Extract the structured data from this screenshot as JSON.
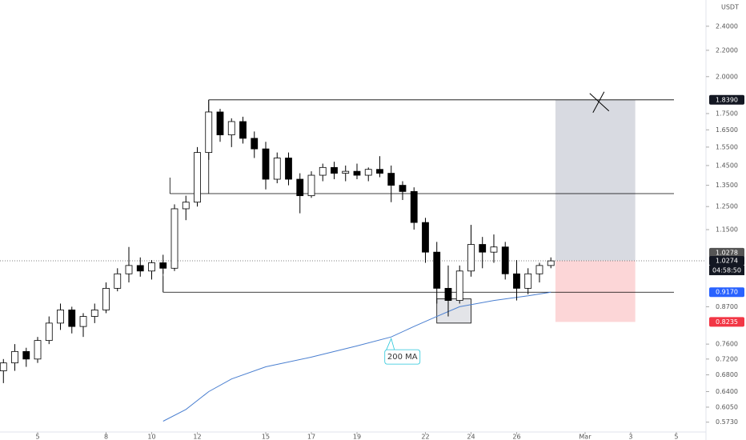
{
  "chart_data": {
    "type": "candlestick",
    "currency": "USDT",
    "log_scale": true,
    "up_color": "#ffffff",
    "down_color": "#000000",
    "x": [
      3.5,
      4,
      4.5,
      5,
      5.5,
      6,
      6.5,
      7,
      7.5,
      8,
      8.5,
      9,
      9.5,
      10,
      10.5,
      11,
      11.5,
      12,
      12.5,
      13,
      13.5,
      14,
      14.5,
      15,
      15.5,
      16,
      16.5,
      17,
      17.5,
      18,
      18.5,
      19,
      19.5,
      20,
      20.5,
      21,
      21.5,
      22,
      22.5,
      23,
      23.5,
      24,
      24.5,
      25,
      25.5,
      26,
      26.5,
      27,
      27.5
    ],
    "open": [
      0.69,
      0.71,
      0.74,
      0.72,
      0.77,
      0.82,
      0.86,
      0.81,
      0.84,
      0.86,
      0.93,
      0.98,
      1.01,
      0.99,
      1.02,
      1.0,
      1.24,
      1.27,
      1.52,
      1.76,
      1.62,
      1.7,
      1.6,
      1.54,
      1.38,
      1.49,
      1.38,
      1.3,
      1.4,
      1.44,
      1.41,
      1.42,
      1.4,
      1.43,
      1.41,
      1.35,
      1.32,
      1.18,
      1.06,
      0.93,
      0.89,
      0.99,
      1.09,
      1.06,
      1.08,
      0.98,
      0.93,
      0.98,
      1.01
    ],
    "high": [
      0.72,
      0.76,
      0.75,
      0.78,
      0.84,
      0.88,
      0.87,
      0.85,
      0.88,
      0.95,
      1.0,
      1.08,
      1.04,
      1.03,
      1.05,
      1.26,
      1.3,
      1.55,
      1.839,
      1.78,
      1.72,
      1.73,
      1.64,
      1.58,
      1.52,
      1.52,
      1.41,
      1.42,
      1.46,
      1.47,
      1.45,
      1.46,
      1.44,
      1.5,
      1.45,
      1.37,
      1.34,
      1.2,
      1.1,
      1.01,
      1.01,
      1.17,
      1.12,
      1.13,
      1.1,
      1.03,
      1.0,
      1.02,
      1.04
    ],
    "low": [
      0.66,
      0.69,
      0.7,
      0.71,
      0.76,
      0.8,
      0.79,
      0.78,
      0.82,
      0.85,
      0.92,
      0.95,
      0.97,
      0.96,
      0.98,
      0.99,
      1.19,
      1.25,
      1.48,
      1.58,
      1.55,
      1.57,
      1.49,
      1.33,
      1.36,
      1.35,
      1.22,
      1.29,
      1.37,
      1.38,
      1.37,
      1.38,
      1.37,
      1.39,
      1.27,
      1.28,
      1.15,
      1.02,
      0.88,
      0.84,
      0.88,
      0.97,
      1.0,
      1.02,
      0.96,
      0.89,
      0.91,
      0.95,
      1.0
    ],
    "close": [
      0.71,
      0.74,
      0.72,
      0.77,
      0.82,
      0.86,
      0.81,
      0.84,
      0.86,
      0.93,
      0.98,
      1.01,
      0.99,
      1.02,
      1.0,
      1.24,
      1.27,
      1.52,
      1.76,
      1.62,
      1.7,
      1.6,
      1.54,
      1.38,
      1.49,
      1.38,
      1.3,
      1.4,
      1.44,
      1.41,
      1.42,
      1.4,
      1.43,
      1.41,
      1.35,
      1.32,
      1.18,
      1.06,
      0.93,
      0.89,
      0.99,
      1.09,
      1.06,
      1.08,
      0.98,
      0.93,
      0.98,
      1.01,
      1.027
    ],
    "ma": {
      "name": "200 MA",
      "color": "#4a7fd0",
      "x": [
        10.5,
        11.5,
        12.5,
        13.5,
        15,
        17,
        19,
        20.5,
        21.5,
        22.5,
        23.5,
        25,
        26.5,
        27.5
      ],
      "values": [
        0.575,
        0.6,
        0.64,
        0.67,
        0.7,
        0.725,
        0.755,
        0.78,
        0.81,
        0.84,
        0.87,
        0.89,
        0.905,
        0.917
      ]
    },
    "levels": [
      {
        "value": 1.839,
        "x": 12.5
      },
      {
        "value": 1.31,
        "x": 10.8
      },
      {
        "value": 0.917,
        "x": 10.5
      }
    ],
    "box": {
      "x": [
        22.5,
        24.0
      ],
      "y": [
        0.82,
        0.895
      ]
    },
    "position": {
      "x": [
        27.7,
        31.2
      ],
      "target": 1.839,
      "entry": 1.0278,
      "stop": 0.8235
    },
    "last_price": 1.0274,
    "badges": [
      {
        "value": 1.839,
        "label": "1.8390",
        "color": "#131722"
      },
      {
        "value": 1.0278,
        "label": "1.0278",
        "color": "#555555"
      },
      {
        "value": 1.0274,
        "label": "1.0274",
        "color": "#131722"
      },
      {
        "value": 0.917,
        "label": "0.9170",
        "color": "#2962ff"
      },
      {
        "value": 0.8235,
        "label": "0.8235",
        "color": "#f23645"
      }
    ],
    "countdown": "04:58:50",
    "xlim": [
      3.35,
      34.3
    ],
    "ylim": [
      0.553,
      2.639
    ],
    "xticks": [
      5,
      8,
      10,
      12,
      15,
      17,
      19,
      22,
      24,
      26,
      {
        "value": 29,
        "label": "Mar"
      },
      {
        "value": 31,
        "label": "3"
      },
      {
        "value": 33,
        "label": "5"
      }
    ],
    "yticks": [
      {
        "value": 2.4,
        "label": "2.4000"
      },
      {
        "value": 2.2,
        "label": "2.2000"
      },
      {
        "value": 2.0,
        "label": "2.0000"
      },
      {
        "value": 1.75,
        "label": "1.7500"
      },
      {
        "value": 1.65,
        "label": "1.6500"
      },
      {
        "value": 1.55,
        "label": "1.5500"
      },
      {
        "value": 1.45,
        "label": "1.4500"
      },
      {
        "value": 1.35,
        "label": "1.3500"
      },
      {
        "value": 1.25,
        "label": "1.2500"
      },
      {
        "value": 1.15,
        "label": "1.1500"
      },
      {
        "value": 0.87,
        "label": "0.8700"
      },
      {
        "value": 0.76,
        "label": "0.7600"
      },
      {
        "value": 0.72,
        "label": "0.7200"
      },
      {
        "value": 0.68,
        "label": "0.6800"
      },
      {
        "value": 0.64,
        "label": "0.6400"
      },
      {
        "value": 0.605,
        "label": "0.6050"
      },
      {
        "value": 0.573,
        "label": "0.5730"
      }
    ],
    "grid": false
  }
}
